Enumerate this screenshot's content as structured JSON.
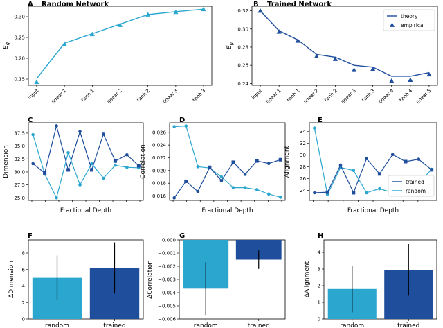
{
  "colors": {
    "random": "#2ba7cf",
    "trained": "#1f4e9c",
    "errbar": "#000000"
  },
  "chart_data": [
    {
      "panel": "A",
      "title": "Random Network",
      "type": "line",
      "categories": [
        "input",
        "linear 1",
        "tanh 1",
        "linear 2",
        "tanh 2",
        "linear 3",
        "tanh 3"
      ],
      "series": [
        {
          "values": [
            0.151,
            0.236,
            0.259,
            0.282,
            0.305,
            0.312,
            0.318
          ]
        },
        {
          "values": [
            0.143,
            0.234,
            0.258,
            0.28,
            0.305,
            0.311,
            0.318
          ]
        }
      ],
      "ylabel": "E_g",
      "ylim": [
        0.135,
        0.325
      ],
      "yticks": [
        0.15,
        0.2,
        0.25,
        0.3
      ],
      "yticklabels": [
        "0.15",
        "0.20",
        "0.25",
        "0.30"
      ]
    },
    {
      "panel": "B",
      "title": "Trained Network",
      "type": "line",
      "categories": [
        "input",
        "linear 1",
        "tanh 1",
        "linear 2",
        "tanh 2",
        "linear 3",
        "tanh 3",
        "linear 4",
        "tanh 4",
        "linear 5"
      ],
      "series": [
        {
          "name": "theory",
          "values": [
            0.32,
            0.298,
            0.288,
            0.272,
            0.269,
            0.26,
            0.258,
            0.248,
            0.248,
            0.252
          ]
        },
        {
          "name": "empirical",
          "values": [
            0.32,
            0.297,
            0.287,
            0.27,
            0.267,
            0.255,
            0.256,
            0.243,
            0.244,
            0.25
          ]
        }
      ],
      "ylabel": "E_g",
      "ylim": [
        0.238,
        0.325
      ],
      "yticks": [
        0.24,
        0.26,
        0.28,
        0.3,
        0.32
      ],
      "yticklabels": [
        "0.24",
        "0.26",
        "0.28",
        "0.30",
        "0.32"
      ],
      "legend": "top-right"
    },
    {
      "panel": "C",
      "type": "line",
      "x": [
        0,
        1,
        2,
        3,
        4,
        5,
        6,
        7,
        8,
        9
      ],
      "series": [
        {
          "values": [
            37.2,
            29.6,
            25.0,
            33.7,
            27.5,
            31.6,
            28.8,
            31.3,
            30.9,
            30.8
          ]
        },
        {
          "values": [
            31.6,
            29.8,
            38.9,
            30.4,
            37.8,
            30.4,
            37.3,
            32.1,
            33.3,
            31.2
          ]
        }
      ],
      "xlabel": "Fractional Depth",
      "ylabel": "Dimension",
      "ylim": [
        24.5,
        39.5
      ],
      "yticks": [
        25.0,
        27.5,
        30.0,
        32.5,
        35.0,
        37.5
      ],
      "yticklabels": [
        "25.0",
        "27.5",
        "30.0",
        "32.5",
        "35.0",
        "37.5"
      ]
    },
    {
      "panel": "D",
      "type": "line",
      "x": [
        0,
        1,
        2,
        3,
        4,
        5,
        6,
        7,
        8,
        9
      ],
      "series": [
        {
          "values": [
            0.0269,
            0.027,
            0.0206,
            0.0204,
            0.019,
            0.0173,
            0.0173,
            0.017,
            0.0163,
            0.0158
          ]
        },
        {
          "values": [
            0.0157,
            0.0183,
            0.0167,
            0.0205,
            0.0184,
            0.0213,
            0.0194,
            0.0215,
            0.0211,
            0.0217
          ]
        }
      ],
      "xlabel": "Fractional Depth",
      "ylabel": "Correlation",
      "ylim": [
        0.0153,
        0.0275
      ],
      "yticks": [
        0.016,
        0.018,
        0.02,
        0.022,
        0.024,
        0.026
      ],
      "yticklabels": [
        "0.016",
        "0.018",
        "0.020",
        "0.022",
        "0.024",
        "0.026"
      ]
    },
    {
      "panel": "E",
      "type": "line",
      "x": [
        0,
        1,
        2,
        3,
        4,
        5,
        6,
        7,
        8,
        9
      ],
      "series": [
        {
          "name": "random",
          "values": [
            34.6,
            23.3,
            27.9,
            27.4,
            23.6,
            24.3,
            23.6,
            24.2,
            25.2,
            27.6
          ]
        },
        {
          "name": "trained",
          "values": [
            23.6,
            23.7,
            28.3,
            23.6,
            29.4,
            26.8,
            30.1,
            28.9,
            29.3,
            27.5
          ]
        }
      ],
      "xlabel": "Fractional Depth",
      "ylabel": "Alignment",
      "ylim": [
        22.3,
        35.5
      ],
      "yticks": [
        24,
        26,
        28,
        30,
        32,
        34
      ],
      "yticklabels": [
        "24",
        "26",
        "28",
        "30",
        "32",
        "34"
      ],
      "legend": "bottom-right"
    },
    {
      "panel": "F",
      "type": "bar",
      "categories": [
        "random",
        "trained"
      ],
      "values": [
        5.0,
        6.2
      ],
      "errors": [
        2.7,
        3.1
      ],
      "ylabel": "ΔDimension",
      "ylim": [
        0,
        9.6
      ],
      "yticks": [
        0,
        2,
        4,
        6,
        8
      ],
      "yticklabels": [
        "0",
        "2",
        "4",
        "6",
        "8"
      ]
    },
    {
      "panel": "G",
      "type": "bar",
      "categories": [
        "random",
        "trained"
      ],
      "values": [
        -0.0037,
        -0.0015
      ],
      "errors": [
        0.002,
        0.0007
      ],
      "ylabel": "ΔCorrelation",
      "ylim": [
        -0.006,
        0.0
      ],
      "yticks": [
        0.0,
        -0.001,
        -0.002,
        -0.003,
        -0.004,
        -0.005,
        -0.006
      ],
      "yticklabels": [
        "0.000",
        "−0.001",
        "−0.002",
        "−0.003",
        "−0.004",
        "−0.005",
        "−0.006"
      ]
    },
    {
      "panel": "H",
      "type": "bar",
      "categories": [
        "random",
        "trained"
      ],
      "values": [
        1.8,
        2.95
      ],
      "errors": [
        1.4,
        1.55
      ],
      "ylabel": "ΔAlignment",
      "ylim": [
        0,
        4.75
      ],
      "yticks": [
        0,
        1,
        2,
        3,
        4
      ],
      "yticklabels": [
        "0",
        "1",
        "2",
        "3",
        "4"
      ]
    }
  ]
}
